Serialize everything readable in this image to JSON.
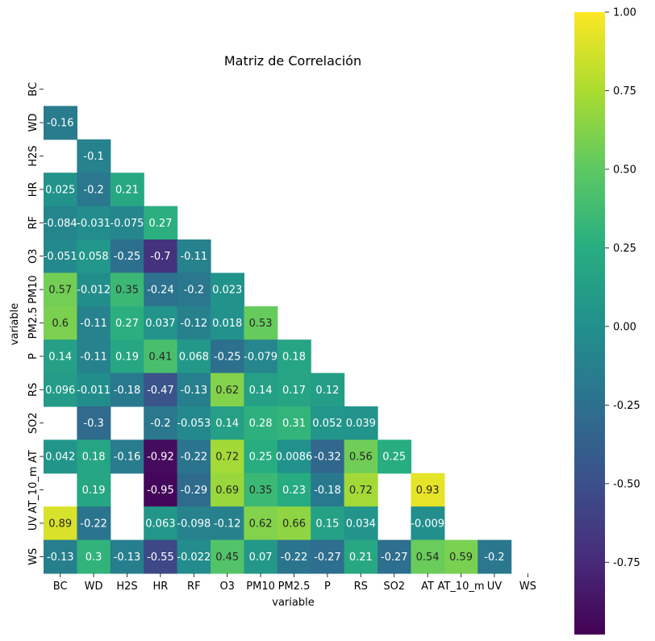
{
  "chart_data": {
    "type": "heatmap",
    "title": "Matriz de Correlación",
    "xlabel": "variable",
    "ylabel": "variable",
    "x": [
      "BC",
      "WD",
      "H2S",
      "HR",
      "RF",
      "O3",
      "PM10",
      "PM2.5",
      "P",
      "RS",
      "SO2",
      "AT",
      "AT_10_m",
      "UV",
      "WS"
    ],
    "y": [
      "BC",
      "WD",
      "H2S",
      "HR",
      "RF",
      "O3",
      "PM10",
      "PM2.5",
      "P",
      "RS",
      "SO2",
      "AT",
      "AT_10_m",
      "UV",
      "WS"
    ],
    "colormap": "viridis",
    "vmin": -0.98,
    "vmax": 1.0,
    "colorbar_ticks": [
      "1.00",
      "0.75",
      "0.50",
      "0.25",
      "0.00",
      "-0.25",
      "-0.50",
      "-0.75"
    ],
    "mask": "upper-triangle-and-diagonal",
    "cells": [
      [
        null,
        null,
        null,
        null,
        null,
        null,
        null,
        null,
        null,
        null,
        null,
        null,
        null,
        null,
        null
      ],
      [
        "-0.16",
        null,
        null,
        null,
        null,
        null,
        null,
        null,
        null,
        null,
        null,
        null,
        null,
        null,
        null
      ],
      [
        null,
        "-0.1",
        null,
        null,
        null,
        null,
        null,
        null,
        null,
        null,
        null,
        null,
        null,
        null,
        null
      ],
      [
        "0.025",
        "-0.2",
        "0.21",
        null,
        null,
        null,
        null,
        null,
        null,
        null,
        null,
        null,
        null,
        null,
        null
      ],
      [
        "-0.084",
        "-0.031",
        "-0.075",
        "0.27",
        null,
        null,
        null,
        null,
        null,
        null,
        null,
        null,
        null,
        null,
        null
      ],
      [
        "-0.051",
        "0.058",
        "-0.25",
        "-0.7",
        "-0.11",
        null,
        null,
        null,
        null,
        null,
        null,
        null,
        null,
        null,
        null
      ],
      [
        "0.57",
        "-0.012",
        "0.35",
        "-0.24",
        "-0.2",
        "0.023",
        null,
        null,
        null,
        null,
        null,
        null,
        null,
        null,
        null
      ],
      [
        "0.6",
        "-0.11",
        "0.27",
        "0.037",
        "-0.12",
        "0.018",
        "0.53",
        null,
        null,
        null,
        null,
        null,
        null,
        null,
        null
      ],
      [
        "0.14",
        "-0.11",
        "0.19",
        "0.41",
        "0.068",
        "-0.25",
        "-0.079",
        "0.18",
        null,
        null,
        null,
        null,
        null,
        null,
        null
      ],
      [
        "0.096",
        "-0.011",
        "-0.18",
        "-0.47",
        "-0.13",
        "0.62",
        "0.14",
        "0.17",
        "0.12",
        null,
        null,
        null,
        null,
        null,
        null
      ],
      [
        null,
        "-0.3",
        null,
        "-0.2",
        "-0.053",
        "0.14",
        "0.28",
        "0.31",
        "0.052",
        "0.039",
        null,
        null,
        null,
        null,
        null
      ],
      [
        "0.042",
        "0.18",
        "-0.16",
        "-0.92",
        "-0.22",
        "0.72",
        "0.25",
        "0.0086",
        "-0.32",
        "0.56",
        "0.25",
        null,
        null,
        null,
        null
      ],
      [
        null,
        "0.19",
        null,
        "-0.95",
        "-0.29",
        "0.69",
        "0.35",
        "0.23",
        "-0.18",
        "0.72",
        null,
        "0.93",
        null,
        null,
        null
      ],
      [
        "0.89",
        "-0.22",
        null,
        "0.063",
        "-0.098",
        "-0.12",
        "0.62",
        "0.66",
        "0.15",
        "0.034",
        null,
        "-0.009",
        null,
        null,
        null
      ],
      [
        "-0.13",
        "0.3",
        "-0.13",
        "-0.55",
        "-0.022",
        "0.45",
        "0.07",
        "-0.22",
        "-0.27",
        "0.21",
        "-0.27",
        "0.54",
        "0.59",
        "-0.2",
        null
      ]
    ]
  }
}
